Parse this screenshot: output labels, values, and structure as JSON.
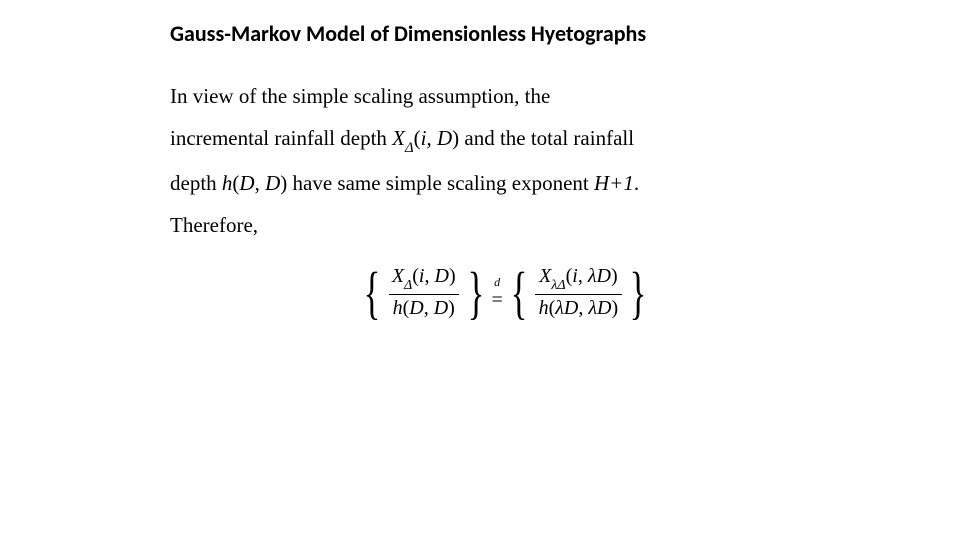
{
  "title": "Gauss-Markov Model of Dimensionless Hyetographs",
  "para": {
    "t1": "In view of the simple scaling assumption, the",
    "t2": "incremental rainfall depth ",
    "X": "X",
    "delta": "Δ",
    "args1_open": "(",
    "i": "i",
    "comma": ", ",
    "D": "D",
    "args1_close": ")",
    "t3": " and the total rainfall",
    "t4": "depth ",
    "h": "h",
    "args2_open": "(",
    "args2_close": ")",
    "t5": " have same simple scaling exponent ",
    "Hplus1": "H+1",
    "period": ".",
    "t6": "Therefore,"
  },
  "eq": {
    "lbrace": "{",
    "rbrace": "}",
    "X": "X",
    "delta": "Δ",
    "h": "h",
    "i": "i",
    "D": "D",
    "lambda": "λ",
    "open": "(",
    "close": ")",
    "comma": ", ",
    "d_label": "d",
    "equals": "="
  }
}
